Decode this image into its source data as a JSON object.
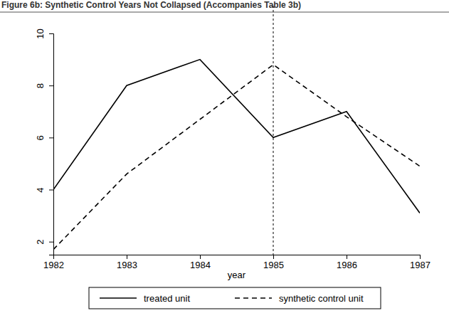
{
  "chart_data": {
    "type": "line",
    "title": "Figure 6b: Synthetic Control Years Not Collapsed (Accompanies Table 3b)",
    "x_label": "year",
    "x": [
      1982,
      1983,
      1984,
      1985,
      1986,
      1987
    ],
    "series": [
      {
        "name": "treated unit",
        "color": "#000000",
        "line_style": "solid",
        "values": [
          4.0,
          8.0,
          9.0,
          6.0,
          7.0,
          3.1
        ]
      },
      {
        "name": "synthetic control unit",
        "color": "#000000",
        "line_style": "dashed",
        "values": [
          1.7,
          4.6,
          6.7,
          8.8,
          6.8,
          4.9
        ]
      }
    ],
    "reference_x": 1985,
    "xlim": [
      1982,
      1987
    ],
    "xticks": [
      1982,
      1983,
      1984,
      1985,
      1986,
      1987
    ],
    "ylim": [
      1.5,
      10
    ],
    "yticks": [
      2,
      4,
      6,
      8,
      10
    ],
    "grid": false,
    "legend": "bottom"
  }
}
